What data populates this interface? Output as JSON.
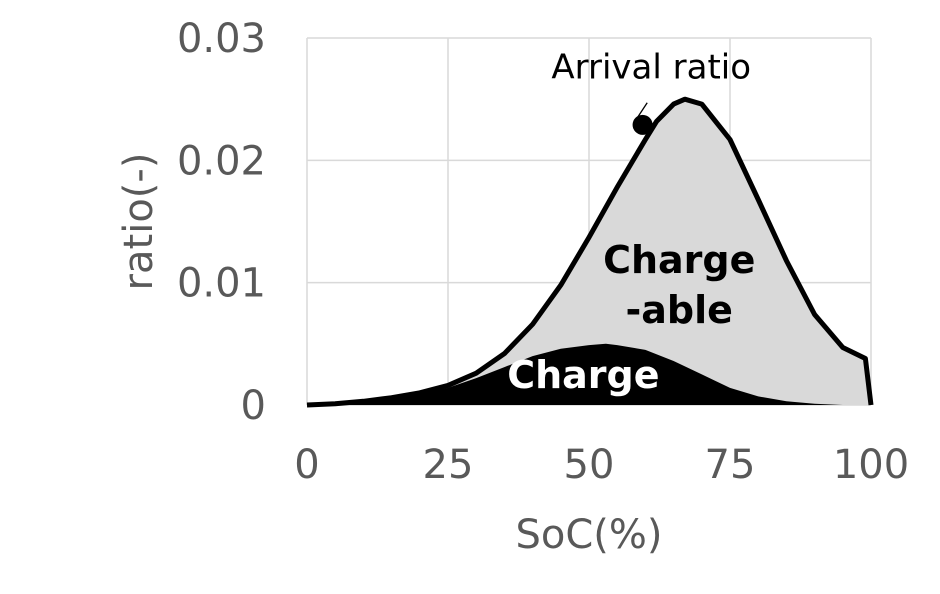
{
  "chart_data": {
    "type": "area",
    "xlabel": "SoC(%)",
    "ylabel": "ratio(-)",
    "xlim": [
      0,
      100
    ],
    "ylim": [
      0,
      0.03
    ],
    "x_ticks": [
      0,
      25,
      50,
      75,
      100
    ],
    "x_tick_labels": [
      "0",
      "25",
      "50",
      "75",
      "100"
    ],
    "y_ticks": [
      0,
      0.01,
      0.02,
      0.03
    ],
    "y_tick_labels": [
      "0",
      "0.01",
      "0.02",
      "0.03"
    ],
    "grid": true,
    "series": [
      {
        "key": "arrival",
        "x": [
          0,
          5,
          10,
          15,
          20,
          25,
          30,
          35,
          40,
          45,
          50,
          55,
          60,
          62,
          65,
          67,
          70,
          75,
          80,
          85,
          90,
          95,
          99,
          100
        ],
        "values": [
          0,
          0.0001,
          0.0003,
          0.0006,
          0.001,
          0.0016,
          0.0026,
          0.0042,
          0.0066,
          0.0098,
          0.0137,
          0.0178,
          0.0217,
          0.0232,
          0.0246,
          0.025,
          0.0246,
          0.0217,
          0.0168,
          0.0118,
          0.0074,
          0.0047,
          0.0038,
          0
        ],
        "fill": "#d9d9d9",
        "stroke": "#000000"
      },
      {
        "key": "charge",
        "x": [
          0,
          5,
          10,
          15,
          20,
          25,
          30,
          35,
          40,
          45,
          50,
          53,
          55,
          60,
          65,
          70,
          75,
          80,
          85,
          90,
          95,
          100
        ],
        "values": [
          0,
          0.0001,
          0.0002,
          0.0005,
          0.0009,
          0.0014,
          0.0022,
          0.0031,
          0.004,
          0.0046,
          0.0049,
          0.005,
          0.0049,
          0.0045,
          0.0036,
          0.0025,
          0.0014,
          0.0007,
          0.0003,
          0.0001,
          0,
          0
        ],
        "fill": "#000000"
      }
    ],
    "annotations": {
      "arrival_label": "Arrival ratio",
      "arrival_point": [
        59.5,
        0.0229
      ],
      "label_anchor": [
        55,
        0.0252
      ],
      "chargeable_line1": "Charge",
      "chargeable_line2": "-able",
      "chargeable_pos": [
        66,
        0.0108
      ],
      "charge_label": "Charge",
      "charge_pos": [
        49,
        0.0014
      ]
    },
    "colors": {
      "grid": "#d9d9d9",
      "tick_text": "#595959",
      "charge_fill": "#000000",
      "chargeable_fill": "#d9d9d9"
    }
  }
}
